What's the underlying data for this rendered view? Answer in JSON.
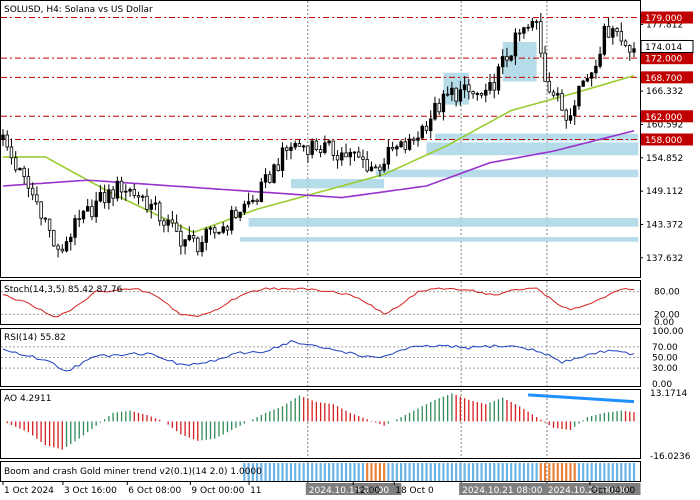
{
  "window": {
    "title": "SOLUSD, H4:  Solana vs US Dollar",
    "price_axis": [
      "177.812",
      "172.072",
      "166.332",
      "160.592",
      "154.852",
      "149.112",
      "143.372",
      "137.632"
    ],
    "levels": [
      {
        "label": "179.000",
        "price": 179.0
      },
      {
        "label": "172.000",
        "price": 172.0
      },
      {
        "label": "168.700",
        "price": 168.7
      },
      {
        "label": "162.000",
        "price": 162.0
      },
      {
        "label": "158.000",
        "price": 158.0
      }
    ],
    "current_price": {
      "label": "174.014",
      "price": 174.014
    },
    "time_axis": [
      "1 Oct 2024",
      "3 Oct 16:00",
      "6 Oct 08:00",
      "9 Oct 00:00",
      "11",
      "2024.10.15 00:00",
      "12:00",
      "18 Oct 0",
      "2024.10.21 08:00",
      "2024.10.25 00:00",
      "Oct 04:00"
    ]
  },
  "colors": {
    "level_line": "#c00000",
    "bull_candle": "#000000",
    "bear_candle": "#ffffff",
    "ma_fast": "#9acd32",
    "ma_slow": "#9932cc",
    "zones": "#add8e6",
    "ao_up": "#2e8b57",
    "ao_down": "#d42020",
    "trend_line": "#1e90ff",
    "band_blue": "#6ab4e8",
    "band_orange": "#e8823a"
  },
  "chart_data": [
    {
      "type": "candlestick",
      "title": "SOLUSD, H4:  Solana vs US Dollar",
      "ylim": [
        134.5,
        181.5
      ],
      "yticks": [
        177.812,
        172.072,
        166.332,
        160.592,
        154.852,
        149.112,
        143.372,
        137.632
      ],
      "anchors": [
        [
          0,
          158
        ],
        [
          4,
          152
        ],
        [
          9,
          146
        ],
        [
          13,
          138
        ],
        [
          16,
          142
        ],
        [
          22,
          147
        ],
        [
          28,
          150
        ],
        [
          33,
          148
        ],
        [
          38,
          144
        ],
        [
          42,
          141
        ],
        [
          46,
          140
        ],
        [
          52,
          143
        ],
        [
          56,
          146
        ],
        [
          60,
          148
        ],
        [
          64,
          153
        ],
        [
          68,
          157
        ],
        [
          73,
          157
        ],
        [
          78,
          156
        ],
        [
          83,
          155
        ],
        [
          88,
          153
        ],
        [
          92,
          156
        ],
        [
          96,
          157
        ],
        [
          98,
          159
        ],
        [
          102,
          163
        ],
        [
          106,
          166
        ],
        [
          110,
          166
        ],
        [
          114,
          165
        ],
        [
          118,
          171
        ],
        [
          122,
          176
        ],
        [
          126,
          178
        ],
        [
          128,
          169
        ],
        [
          130,
          166
        ],
        [
          133,
          162
        ],
        [
          136,
          167
        ],
        [
          139,
          170
        ],
        [
          142,
          176
        ],
        [
          144,
          178
        ],
        [
          146,
          175
        ],
        [
          149,
          174
        ]
      ],
      "bar_count": 150,
      "moving_averages": [
        {
          "name": "fast",
          "anchors": [
            [
              0,
              155
            ],
            [
              10,
              155
            ],
            [
              25,
              149
            ],
            [
              45,
              142
            ],
            [
              60,
              146
            ],
            [
              75,
              149
            ],
            [
              90,
              152
            ],
            [
              105,
              157
            ],
            [
              120,
              163
            ],
            [
              135,
              166
            ],
            [
              149,
              169
            ]
          ]
        },
        {
          "name": "slow",
          "anchors": [
            [
              0,
              150
            ],
            [
              20,
              151
            ],
            [
              40,
              150
            ],
            [
              60,
              149
            ],
            [
              80,
              148
            ],
            [
              100,
              150
            ],
            [
              115,
              154
            ],
            [
              130,
              156
            ],
            [
              149,
              159.5
            ]
          ]
        }
      ],
      "zones": [
        {
          "price_top": 174.8,
          "price_bottom": 168.0,
          "x_from": 118,
          "x_to": 126
        },
        {
          "price_top": 169.5,
          "price_bottom": 164.0,
          "x_from": 104,
          "x_to": 110
        },
        {
          "price_top": 159.0,
          "price_bottom": 157.8,
          "x_from": 102,
          "x_to": 150
        },
        {
          "price_top": 157.5,
          "price_bottom": 155.3,
          "x_from": 100,
          "x_to": 150
        },
        {
          "price_top": 152.8,
          "price_bottom": 151.5,
          "x_from": 88,
          "x_to": 150
        },
        {
          "price_top": 151.2,
          "price_bottom": 149.6,
          "x_from": 68,
          "x_to": 90
        },
        {
          "price_top": 144.5,
          "price_bottom": 143.0,
          "x_from": 58,
          "x_to": 150
        },
        {
          "price_top": 141.2,
          "price_bottom": 140.4,
          "x_from": 56,
          "x_to": 150
        }
      ]
    },
    {
      "type": "line",
      "title": "Stoch(14,3,5) 85.42 87.76",
      "ylim": [
        0,
        100
      ],
      "yticks": [
        "80.00",
        "20.00",
        "0.00"
      ],
      "levels": [
        80,
        20
      ],
      "anchors": [
        [
          0,
          70
        ],
        [
          6,
          50
        ],
        [
          12,
          12
        ],
        [
          16,
          30
        ],
        [
          22,
          80
        ],
        [
          28,
          85
        ],
        [
          32,
          85
        ],
        [
          36,
          70
        ],
        [
          42,
          20
        ],
        [
          46,
          15
        ],
        [
          50,
          30
        ],
        [
          56,
          70
        ],
        [
          62,
          90
        ],
        [
          68,
          85
        ],
        [
          72,
          88
        ],
        [
          78,
          80
        ],
        [
          84,
          65
        ],
        [
          90,
          20
        ],
        [
          94,
          45
        ],
        [
          98,
          80
        ],
        [
          104,
          88
        ],
        [
          110,
          85
        ],
        [
          116,
          70
        ],
        [
          120,
          82
        ],
        [
          126,
          90
        ],
        [
          130,
          55
        ],
        [
          134,
          30
        ],
        [
          140,
          55
        ],
        [
          146,
          85
        ],
        [
          149,
          87
        ]
      ]
    },
    {
      "type": "line",
      "title": "RSI(14) 55.82",
      "ylim": [
        0,
        100
      ],
      "yticks": [
        "100.00",
        "70.00",
        "50.00",
        "30.00",
        "0.00"
      ],
      "levels": [
        70,
        50,
        30
      ],
      "anchors": [
        [
          0,
          65
        ],
        [
          10,
          45
        ],
        [
          15,
          25
        ],
        [
          22,
          52
        ],
        [
          30,
          58
        ],
        [
          36,
          56
        ],
        [
          42,
          35
        ],
        [
          48,
          40
        ],
        [
          56,
          58
        ],
        [
          62,
          62
        ],
        [
          68,
          80
        ],
        [
          74,
          70
        ],
        [
          80,
          62
        ],
        [
          88,
          48
        ],
        [
          96,
          68
        ],
        [
          102,
          72
        ],
        [
          110,
          68
        ],
        [
          116,
          72
        ],
        [
          122,
          70
        ],
        [
          128,
          58
        ],
        [
          132,
          40
        ],
        [
          138,
          55
        ],
        [
          144,
          65
        ],
        [
          149,
          56
        ]
      ]
    },
    {
      "type": "bar",
      "title": "AO 4.2911",
      "ylim": [
        -16.0236,
        13.1714
      ],
      "yticks": [
        "13.1714",
        "-16.0236"
      ],
      "anchors": [
        [
          0,
          0
        ],
        [
          6,
          -5
        ],
        [
          10,
          -11
        ],
        [
          14,
          -13
        ],
        [
          18,
          -8
        ],
        [
          22,
          -2
        ],
        [
          26,
          4
        ],
        [
          30,
          5
        ],
        [
          34,
          3
        ],
        [
          38,
          0
        ],
        [
          42,
          -6
        ],
        [
          46,
          -9
        ],
        [
          50,
          -8
        ],
        [
          54,
          -4
        ],
        [
          58,
          0
        ],
        [
          62,
          4
        ],
        [
          66,
          7
        ],
        [
          70,
          12
        ],
        [
          74,
          9
        ],
        [
          78,
          8
        ],
        [
          82,
          4
        ],
        [
          86,
          1
        ],
        [
          90,
          -2
        ],
        [
          94,
          2
        ],
        [
          98,
          6
        ],
        [
          102,
          10
        ],
        [
          106,
          13
        ],
        [
          110,
          10
        ],
        [
          114,
          8
        ],
        [
          118,
          11
        ],
        [
          122,
          7
        ],
        [
          126,
          2
        ],
        [
          130,
          -3
        ],
        [
          134,
          -4
        ],
        [
          138,
          2
        ],
        [
          142,
          4
        ],
        [
          146,
          5
        ],
        [
          149,
          4.29
        ]
      ],
      "trend_line": [
        [
          124,
          12.3
        ],
        [
          149,
          9.2
        ]
      ]
    },
    {
      "type": "heatmap",
      "title": "Boom and crash Gold miner trend v2(0.1)(14 2.0) 1.0000",
      "segments": [
        {
          "state": "off",
          "x_from": 0,
          "x_to": 57
        },
        {
          "state": "blue",
          "x_from": 57,
          "x_to": 86
        },
        {
          "state": "orange",
          "x_from": 86,
          "x_to": 91
        },
        {
          "state": "blue",
          "x_from": 91,
          "x_to": 127
        },
        {
          "state": "orange",
          "x_from": 127,
          "x_to": 136
        },
        {
          "state": "blue",
          "x_from": 136,
          "x_to": 150
        }
      ]
    }
  ]
}
